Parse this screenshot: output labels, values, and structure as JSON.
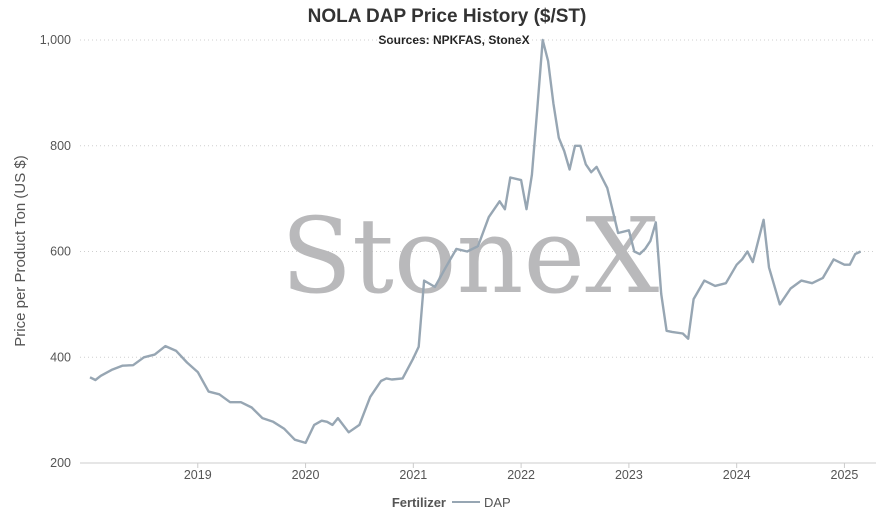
{
  "chart_data": {
    "type": "line",
    "title": "NOLA DAP Price History ($/ST)",
    "subtitle": "Sources: NPKFAS, StoneX",
    "xlabel": "",
    "ylabel": "Price per Product Ton (US $)",
    "watermark": "StoneX",
    "x_ticks": [
      "2019",
      "2020",
      "2021",
      "2022",
      "2023",
      "2024",
      "2025"
    ],
    "y_ticks": [
      "200",
      "400",
      "600",
      "800",
      "1,000"
    ],
    "ylim": [
      200,
      1000
    ],
    "xlim": [
      2018.0,
      2025.2
    ],
    "grid": "horizontal dotted",
    "legend_position": "bottom-center",
    "legend_title": "Fertilizer",
    "series": [
      {
        "name": "DAP",
        "color": "#97a6b3",
        "x": [
          2018.0,
          2018.05,
          2018.1,
          2018.2,
          2018.3,
          2018.4,
          2018.5,
          2018.6,
          2018.7,
          2018.8,
          2018.9,
          2019.0,
          2019.1,
          2019.2,
          2019.3,
          2019.4,
          2019.5,
          2019.6,
          2019.7,
          2019.8,
          2019.9,
          2020.0,
          2020.08,
          2020.15,
          2020.2,
          2020.25,
          2020.3,
          2020.4,
          2020.5,
          2020.6,
          2020.7,
          2020.75,
          2020.8,
          2020.9,
          2021.0,
          2021.05,
          2021.1,
          2021.2,
          2021.3,
          2021.4,
          2021.5,
          2021.6,
          2021.7,
          2021.8,
          2021.85,
          2021.9,
          2022.0,
          2022.05,
          2022.1,
          2022.15,
          2022.2,
          2022.25,
          2022.3,
          2022.35,
          2022.4,
          2022.45,
          2022.5,
          2022.55,
          2022.6,
          2022.65,
          2022.7,
          2022.75,
          2022.8,
          2022.9,
          2023.0,
          2023.05,
          2023.1,
          2023.15,
          2023.2,
          2023.25,
          2023.3,
          2023.35,
          2023.4,
          2023.5,
          2023.55,
          2023.6,
          2023.7,
          2023.8,
          2023.9,
          2024.0,
          2024.05,
          2024.1,
          2024.15,
          2024.2,
          2024.25,
          2024.3,
          2024.4,
          2024.5,
          2024.6,
          2024.7,
          2024.8,
          2024.9,
          2025.0,
          2025.05,
          2025.1,
          2025.15
        ],
        "values": [
          362,
          357,
          365,
          376,
          384,
          385,
          400,
          405,
          421,
          412,
          390,
          372,
          335,
          330,
          315,
          315,
          305,
          285,
          278,
          265,
          244,
          238,
          272,
          280,
          278,
          272,
          285,
          258,
          272,
          325,
          355,
          360,
          358,
          360,
          398,
          420,
          545,
          533,
          570,
          605,
          600,
          610,
          665,
          695,
          680,
          740,
          735,
          680,
          745,
          870,
          1000,
          960,
          880,
          815,
          790,
          755,
          800,
          800,
          765,
          750,
          760,
          740,
          720,
          635,
          640,
          600,
          595,
          605,
          620,
          655,
          520,
          450,
          448,
          445,
          435,
          510,
          545,
          535,
          540,
          575,
          585,
          600,
          580,
          620,
          660,
          570,
          500,
          530,
          545,
          540,
          550,
          585,
          575,
          575,
          595,
          600
        ]
      }
    ]
  }
}
